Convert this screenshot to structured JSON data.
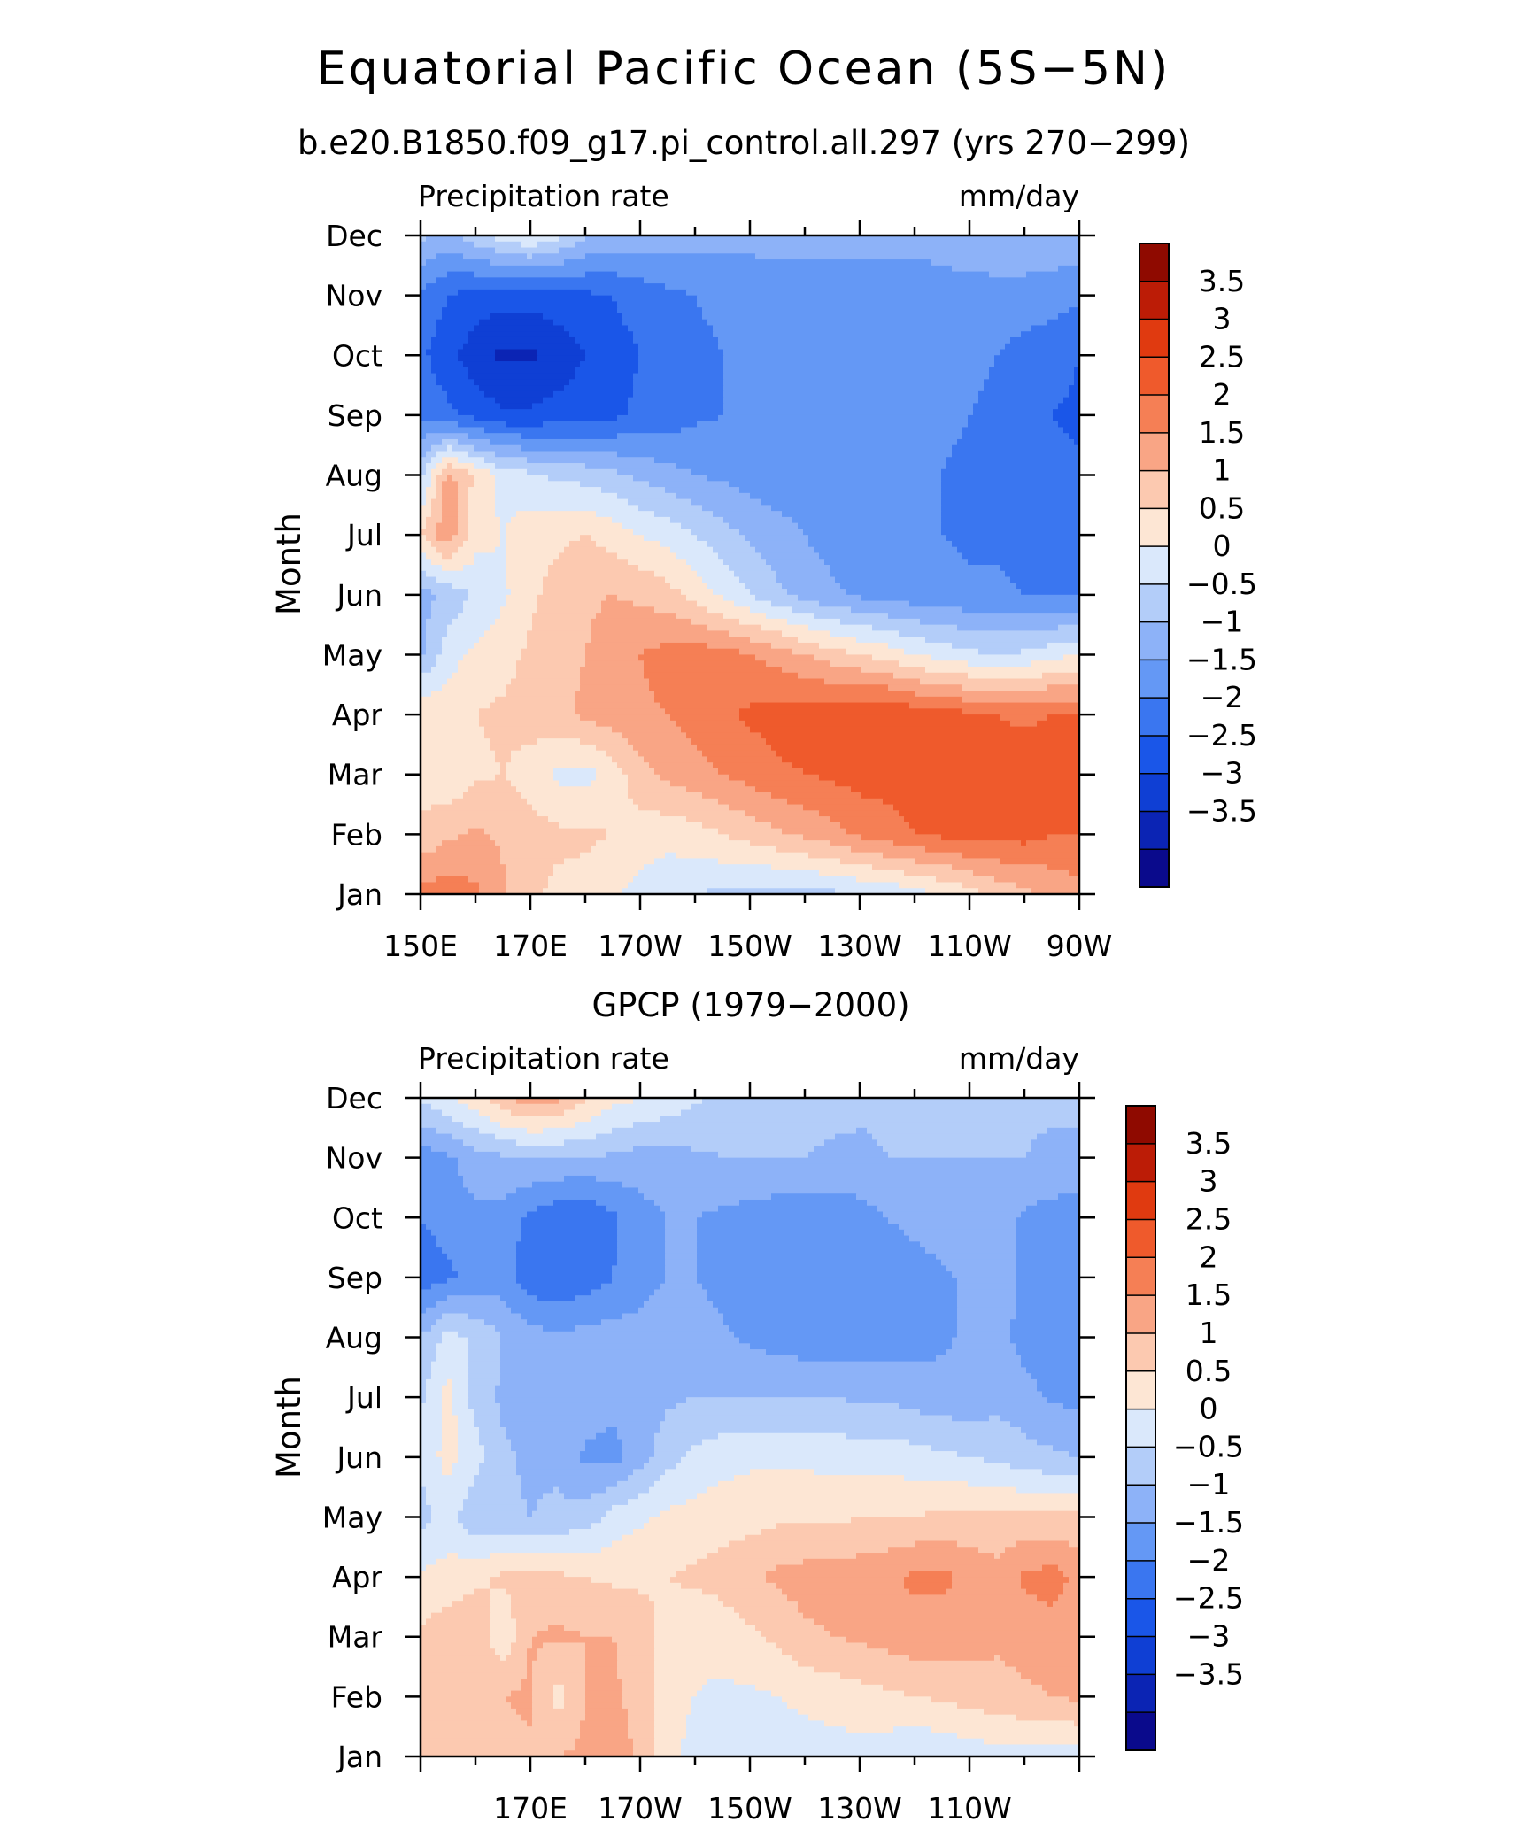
{
  "figure": {
    "title": "Equatorial Pacific Ocean (5S−5N)"
  },
  "colorbar": {
    "levels": [
      -4,
      -3.5,
      -3,
      -2.5,
      -2,
      -1.5,
      -1,
      -0.5,
      0,
      0.5,
      1,
      1.5,
      2,
      2.5,
      3,
      3.5,
      4
    ],
    "labels": [
      "3.5",
      "3",
      "2.5",
      "2",
      "1.5",
      "1",
      "0.5",
      "0",
      "−0.5",
      "−1",
      "−1.5",
      "−2",
      "−2.5",
      "−3",
      "−3.5"
    ],
    "colors": [
      "#0a0a8c",
      "#0b24b4",
      "#0f3fd4",
      "#1a56e8",
      "#3a76f0",
      "#6498f5",
      "#8db2f8",
      "#b3cdf9",
      "#dae8fb",
      "#fde6d4",
      "#fcc9b0",
      "#f9a585",
      "#f57f55",
      "#ef5a2c",
      "#e03a10",
      "#bc1c06",
      "#8f0a00"
    ]
  },
  "chart_data": [
    {
      "type": "heatmap",
      "title": "b.e20.B1850.f09_g17.pi_control.all.297 (yrs 270−299)",
      "left_label": "Precipitation rate",
      "right_label": "mm/day",
      "ylabel": "Month",
      "x_tick_labels": [
        "150E",
        "170E",
        "170W",
        "150W",
        "130W",
        "110W",
        "90W"
      ],
      "y_tick_labels": [
        "Jan",
        "Feb",
        "Mar",
        "Apr",
        "May",
        "Jun",
        "Jul",
        "Aug",
        "Sep",
        "Oct",
        "Nov",
        "Dec"
      ],
      "x_range": [
        150,
        270
      ],
      "y_range": [
        1,
        12
      ],
      "x": [
        150,
        155,
        160,
        165,
        170,
        175,
        180,
        185,
        190,
        195,
        200,
        205,
        210,
        215,
        220,
        225,
        230,
        235,
        240,
        245,
        250,
        255,
        260,
        265,
        270
      ],
      "months": [
        1,
        2,
        3,
        4,
        5,
        6,
        7,
        8,
        9,
        10,
        11,
        12
      ],
      "values": [
        [
          2.2,
          2.3,
          2.1,
          1.6,
          1.1,
          0.9,
          0.8,
          0.6,
          0.3,
          0.1,
          0.0,
          -0.1,
          -0.2,
          -0.2,
          -0.2,
          -0.1,
          0.0,
          0.1,
          0.3,
          0.5,
          0.8,
          1.1,
          1.4,
          1.6,
          1.8
        ],
        [
          1.1,
          1.4,
          1.6,
          1.4,
          1.2,
          1.1,
          1.1,
          1.0,
          0.8,
          0.7,
          0.8,
          1.0,
          1.2,
          1.4,
          1.6,
          1.8,
          2.1,
          2.3,
          2.5,
          2.6,
          2.7,
          2.7,
          2.7,
          2.5,
          2.5
        ],
        [
          0.8,
          0.6,
          0.9,
          1.0,
          0.8,
          0.4,
          0.3,
          0.7,
          1.3,
          1.6,
          1.8,
          2.0,
          2.2,
          2.4,
          2.5,
          2.6,
          2.7,
          2.7,
          2.7,
          2.7,
          2.7,
          2.7,
          2.8,
          2.8,
          2.9
        ],
        [
          1.0,
          0.8,
          1.0,
          1.1,
          1.2,
          1.4,
          1.6,
          1.8,
          1.9,
          2.0,
          2.2,
          2.4,
          2.6,
          2.7,
          2.8,
          2.9,
          3.0,
          3.0,
          2.8,
          2.7,
          2.6,
          2.5,
          2.4,
          2.5,
          2.5
        ],
        [
          -0.6,
          0.3,
          0.6,
          0.8,
          1.1,
          1.3,
          1.5,
          1.8,
          2.0,
          2.2,
          2.3,
          2.2,
          2.0,
          1.8,
          1.5,
          1.2,
          1.0,
          0.8,
          0.5,
          0.3,
          0.1,
          0.0,
          0.1,
          0.3,
          0.5
        ],
        [
          -0.7,
          -0.4,
          0.1,
          0.4,
          0.9,
          1.2,
          1.4,
          1.5,
          1.4,
          1.2,
          0.8,
          0.4,
          0.0,
          -0.4,
          -0.7,
          -0.9,
          -1.1,
          -1.2,
          -1.3,
          -1.3,
          -1.4,
          -1.4,
          -1.5,
          -1.5,
          -1.6
        ],
        [
          1.0,
          1.9,
          0.7,
          0.5,
          0.8,
          0.9,
          1.0,
          0.8,
          0.5,
          0.3,
          0.0,
          -0.3,
          -0.6,
          -0.8,
          -1.0,
          -1.2,
          -1.3,
          -1.4,
          -1.5,
          -1.5,
          -1.6,
          -1.6,
          -1.7,
          -1.8,
          -1.9
        ],
        [
          -0.2,
          1.7,
          0.9,
          0.3,
          0.1,
          -0.1,
          -0.2,
          -0.4,
          -0.6,
          -0.8,
          -1.0,
          -1.1,
          -1.2,
          -1.3,
          -1.3,
          -1.4,
          -1.4,
          -1.4,
          -1.5,
          -1.5,
          -1.6,
          -1.6,
          -1.7,
          -1.8,
          -1.9
        ],
        [
          -1.6,
          -1.9,
          -2.2,
          -2.4,
          -2.4,
          -2.3,
          -2.2,
          -2.1,
          -1.9,
          -1.8,
          -1.6,
          -1.5,
          -1.4,
          -1.4,
          -1.4,
          -1.3,
          -1.3,
          -1.4,
          -1.4,
          -1.4,
          -1.5,
          -1.6,
          -1.8,
          -2.0,
          -2.1
        ],
        [
          -1.9,
          -2.3,
          -2.8,
          -3.1,
          -3.1,
          -2.8,
          -2.5,
          -2.2,
          -2.0,
          -1.8,
          -1.6,
          -1.5,
          -1.5,
          -1.4,
          -1.4,
          -1.3,
          -1.3,
          -1.3,
          -1.3,
          -1.4,
          -1.4,
          -1.5,
          -1.7,
          -1.8,
          -2.0
        ],
        [
          -1.6,
          -2.0,
          -2.2,
          -2.3,
          -2.3,
          -2.2,
          -2.1,
          -2.0,
          -1.8,
          -1.6,
          -1.5,
          -1.4,
          -1.4,
          -1.3,
          -1.3,
          -1.3,
          -1.3,
          -1.3,
          -1.3,
          -1.2,
          -1.2,
          -1.2,
          -1.2,
          -1.3,
          -1.4
        ],
        [
          -0.4,
          -0.6,
          -0.2,
          0.2,
          0.5,
          0.1,
          -0.4,
          -0.6,
          -0.7,
          -0.8,
          -0.8,
          -0.8,
          -0.8,
          -0.8,
          -0.8,
          -0.8,
          -0.8,
          -0.8,
          -0.8,
          -0.8,
          -0.7,
          -0.6,
          -0.6,
          -0.6,
          -0.6
        ]
      ]
    },
    {
      "type": "heatmap",
      "title": "GPCP (1979−2000)",
      "left_label": "Precipitation rate",
      "right_label": "mm/day",
      "ylabel": "Month",
      "x_tick_labels": [
        "170E",
        "170W",
        "150W",
        "130W",
        "110W"
      ],
      "y_tick_labels": [
        "Jan",
        "Feb",
        "Mar",
        "Apr",
        "May",
        "Jun",
        "Jul",
        "Aug",
        "Sep",
        "Oct",
        "Nov",
        "Dec"
      ],
      "x_range": [
        150,
        270
      ],
      "y_range": [
        1,
        12
      ],
      "x": [
        150,
        155,
        160,
        165,
        170,
        175,
        180,
        185,
        190,
        195,
        200,
        205,
        210,
        215,
        220,
        225,
        230,
        235,
        240,
        245,
        250,
        255,
        260,
        265,
        270
      ],
      "months": [
        1,
        2,
        3,
        4,
        5,
        6,
        7,
        8,
        9,
        10,
        11,
        12
      ],
      "values": [
        [
          1.0,
          1.1,
          1.2,
          1.3,
          1.4,
          1.5,
          1.6,
          1.8,
          1.4,
          0.6,
          0.4,
          0.3,
          0.3,
          0.3,
          0.3,
          0.3,
          0.3,
          0.2,
          0.0,
          0.1,
          0.2,
          0.3,
          0.3,
          0.3,
          0.3
        ],
        [
          1.0,
          1.2,
          1.3,
          1.5,
          1.6,
          0.8,
          1.5,
          1.6,
          1.3,
          0.6,
          0.5,
          0.4,
          0.4,
          0.5,
          0.6,
          0.7,
          0.8,
          0.9,
          1.0,
          1.1,
          1.2,
          1.3,
          1.4,
          1.5,
          1.6
        ],
        [
          1.1,
          1.3,
          1.4,
          0.6,
          1.5,
          1.6,
          1.5,
          1.5,
          1.3,
          0.8,
          0.6,
          0.7,
          0.9,
          1.1,
          1.4,
          1.5,
          1.6,
          1.7,
          1.8,
          1.8,
          1.7,
          1.6,
          1.7,
          1.8,
          1.6
        ],
        [
          0.6,
          0.7,
          0.9,
          1.1,
          1.2,
          1.1,
          1.0,
          0.9,
          0.9,
          1.0,
          1.1,
          1.2,
          1.4,
          1.6,
          1.7,
          1.7,
          1.8,
          1.9,
          2.1,
          2.1,
          1.9,
          1.7,
          2.1,
          2.2,
          1.9
        ],
        [
          -0.2,
          0.2,
          -0.4,
          -0.4,
          -0.5,
          -0.4,
          -0.3,
          0.2,
          0.4,
          0.6,
          0.7,
          0.8,
          0.8,
          0.9,
          0.9,
          0.9,
          1.0,
          1.0,
          1.0,
          1.1,
          1.1,
          1.1,
          1.1,
          1.1,
          1.1
        ],
        [
          0.1,
          0.7,
          0.2,
          -0.4,
          -0.6,
          -0.6,
          -1.1,
          -1.2,
          -0.7,
          -0.2,
          0.1,
          0.3,
          0.4,
          0.4,
          0.4,
          0.3,
          0.3,
          0.3,
          0.2,
          0.1,
          0.0,
          -0.1,
          -0.3,
          -0.4,
          -0.5
        ],
        [
          -0.1,
          0.7,
          -0.2,
          -0.6,
          -0.7,
          -0.7,
          -0.7,
          -0.8,
          -0.8,
          -0.6,
          -0.5,
          -0.5,
          -0.5,
          -0.5,
          -0.5,
          -0.5,
          -0.6,
          -0.6,
          -0.7,
          -0.8,
          -0.8,
          -0.7,
          -0.8,
          -1.1,
          -1.1
        ],
        [
          -0.5,
          0.2,
          -0.1,
          -0.5,
          -0.8,
          -0.9,
          -0.8,
          -0.8,
          -0.8,
          -0.7,
          -0.7,
          -0.9,
          -1.1,
          -1.2,
          -1.3,
          -1.3,
          -1.3,
          -1.3,
          -1.2,
          -1.1,
          -0.9,
          -0.8,
          -1.2,
          -1.3,
          -1.4
        ],
        [
          -1.8,
          -1.6,
          -1.3,
          -1.3,
          -1.8,
          -2.0,
          -1.8,
          -1.5,
          -1.2,
          -1.0,
          -1.0,
          -1.2,
          -1.4,
          -1.5,
          -1.5,
          -1.5,
          -1.5,
          -1.4,
          -1.3,
          -1.1,
          -0.9,
          -0.7,
          -1.1,
          -1.2,
          -1.3
        ],
        [
          -1.5,
          -1.3,
          -1.1,
          -1.2,
          -1.6,
          -1.9,
          -2.0,
          -1.6,
          -1.2,
          -1.0,
          -1.0,
          -1.1,
          -1.2,
          -1.3,
          -1.3,
          -1.3,
          -1.2,
          -1.0,
          -0.8,
          -0.7,
          -0.6,
          -0.7,
          -1.1,
          -1.2,
          -1.3
        ],
        [
          -1.3,
          -1.1,
          -0.7,
          -0.6,
          -0.5,
          -0.5,
          -0.5,
          -0.6,
          -0.7,
          -0.7,
          -0.6,
          -0.5,
          -0.5,
          -0.5,
          -0.5,
          -0.6,
          -0.6,
          -0.5,
          -0.5,
          -0.5,
          -0.5,
          -0.5,
          -0.5,
          -0.6,
          -0.6
        ],
        [
          0.1,
          0.5,
          0.8,
          1.4,
          1.8,
          1.6,
          1.1,
          0.7,
          0.5,
          0.3,
          0.1,
          -0.1,
          -0.2,
          -0.3,
          -0.3,
          -0.3,
          -0.4,
          -0.4,
          -0.4,
          -0.4,
          -0.4,
          -0.4,
          -0.4,
          -0.4,
          -0.4
        ]
      ]
    }
  ]
}
